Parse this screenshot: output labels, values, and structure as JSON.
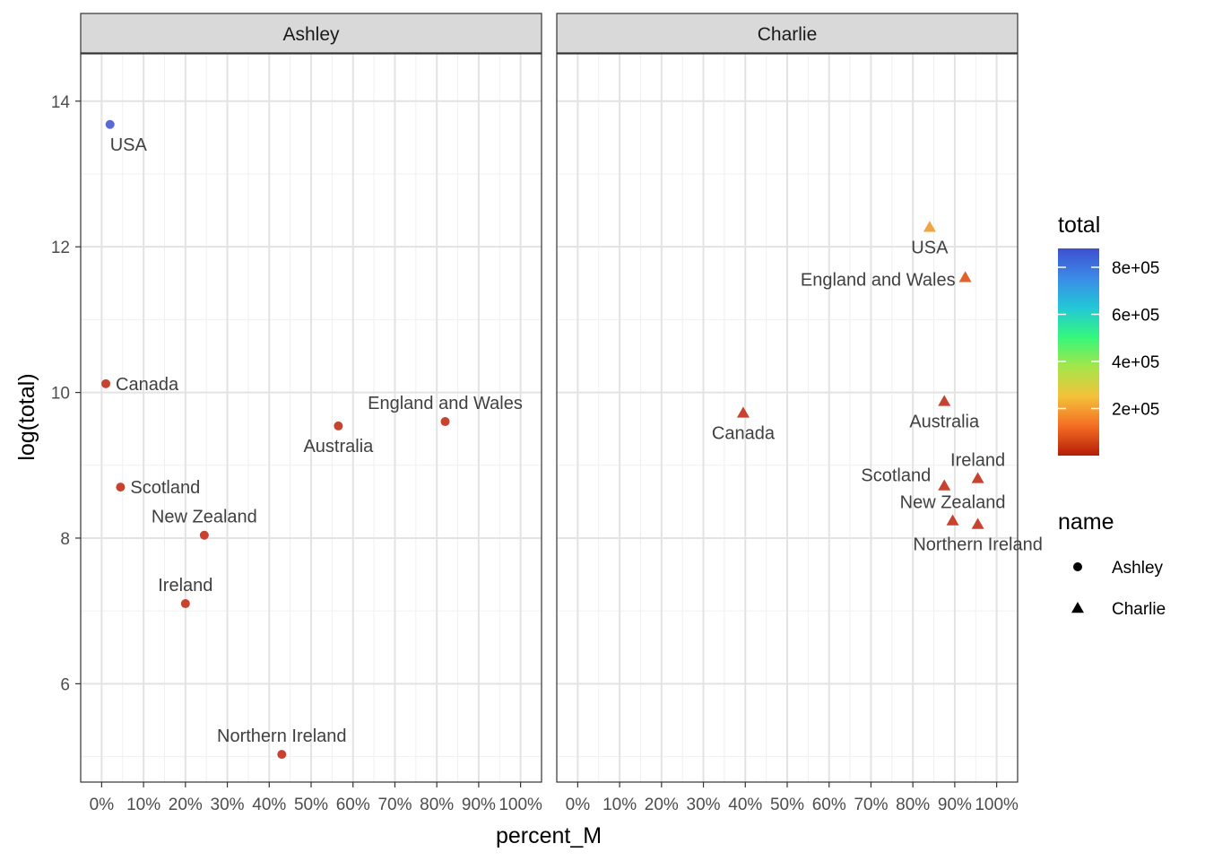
{
  "chart_data": {
    "type": "scatter",
    "xlabel": "percent_M",
    "ylabel": "log(total)",
    "xlim": [
      -0.05,
      1.05
    ],
    "ylim": [
      4.65,
      14.65
    ],
    "x_ticks": [
      0,
      0.1,
      0.2,
      0.3,
      0.4,
      0.5,
      0.6,
      0.7,
      0.8,
      0.9,
      1.0
    ],
    "x_tick_labels": [
      "0%",
      "10%",
      "20%",
      "30%",
      "40%",
      "50%",
      "60%",
      "70%",
      "80%",
      "90%",
      "100%"
    ],
    "y_ticks": [
      6,
      8,
      10,
      12,
      14
    ],
    "y_tick_labels": [
      "6",
      "8",
      "10",
      "12",
      "14"
    ],
    "grid": true,
    "color_legend": {
      "title": "total",
      "scale": "rainbow (red → orange → yellow → green → cyan → blue)",
      "range": [
        1,
        880000
      ],
      "breaks": [
        200000,
        400000,
        600000,
        800000
      ],
      "labels": [
        "2e+05",
        "4e+05",
        "6e+05",
        "8e+05"
      ],
      "stops": [
        "#b51d06",
        "#f46d24",
        "#f4c13a",
        "#a5e64a",
        "#35f77c",
        "#22c7d7",
        "#3b8be6",
        "#3e4fcf"
      ]
    },
    "shape_legend": {
      "title": "name",
      "items": [
        {
          "label": "Ashley",
          "shape": "circle"
        },
        {
          "label": "Charlie",
          "shape": "triangle"
        }
      ]
    },
    "facets": [
      {
        "strip": "Ashley",
        "shape": "circle",
        "points": [
          {
            "label": "USA",
            "x": 0.02,
            "y": 13.68,
            "color": "#5a6ad0",
            "label_pos": "below-right"
          },
          {
            "label": "Canada",
            "x": 0.01,
            "y": 10.12,
            "color": "#c8432f",
            "label_pos": "right"
          },
          {
            "label": "England and Wales",
            "x": 0.82,
            "y": 9.6,
            "color": "#c8432f",
            "label_pos": "above"
          },
          {
            "label": "Australia",
            "x": 0.565,
            "y": 9.54,
            "color": "#c8432f",
            "label_pos": "below"
          },
          {
            "label": "Scotland",
            "x": 0.045,
            "y": 8.7,
            "color": "#c8432f",
            "label_pos": "right"
          },
          {
            "label": "New Zealand",
            "x": 0.245,
            "y": 8.04,
            "color": "#c8432f",
            "label_pos": "above"
          },
          {
            "label": "Ireland",
            "x": 0.2,
            "y": 7.1,
            "color": "#c8432f",
            "label_pos": "above"
          },
          {
            "label": "Northern Ireland",
            "x": 0.43,
            "y": 5.03,
            "color": "#c8432f",
            "label_pos": "above"
          }
        ]
      },
      {
        "strip": "Charlie",
        "shape": "triangle",
        "points": [
          {
            "label": "USA",
            "x": 0.84,
            "y": 12.27,
            "color": "#f0a545",
            "label_pos": "below"
          },
          {
            "label": "England and Wales",
            "x": 0.925,
            "y": 11.58,
            "color": "#e0622a",
            "label_pos": "left"
          },
          {
            "label": "Canada",
            "x": 0.395,
            "y": 9.72,
            "color": "#c8432f",
            "label_pos": "below"
          },
          {
            "label": "Australia",
            "x": 0.875,
            "y": 9.88,
            "color": "#c8432f",
            "label_pos": "below"
          },
          {
            "label": "Ireland",
            "x": 0.955,
            "y": 8.82,
            "color": "#c8432f",
            "label_pos": "above"
          },
          {
            "label": "Scotland",
            "x": 0.875,
            "y": 8.72,
            "color": "#c8432f",
            "label_pos": "above-left"
          },
          {
            "label": "New Zealand",
            "x": 0.895,
            "y": 8.24,
            "color": "#c8432f",
            "label_pos": "above"
          },
          {
            "label": "Northern Ireland",
            "x": 0.955,
            "y": 8.19,
            "color": "#c8432f",
            "label_pos": "below"
          }
        ]
      }
    ]
  }
}
